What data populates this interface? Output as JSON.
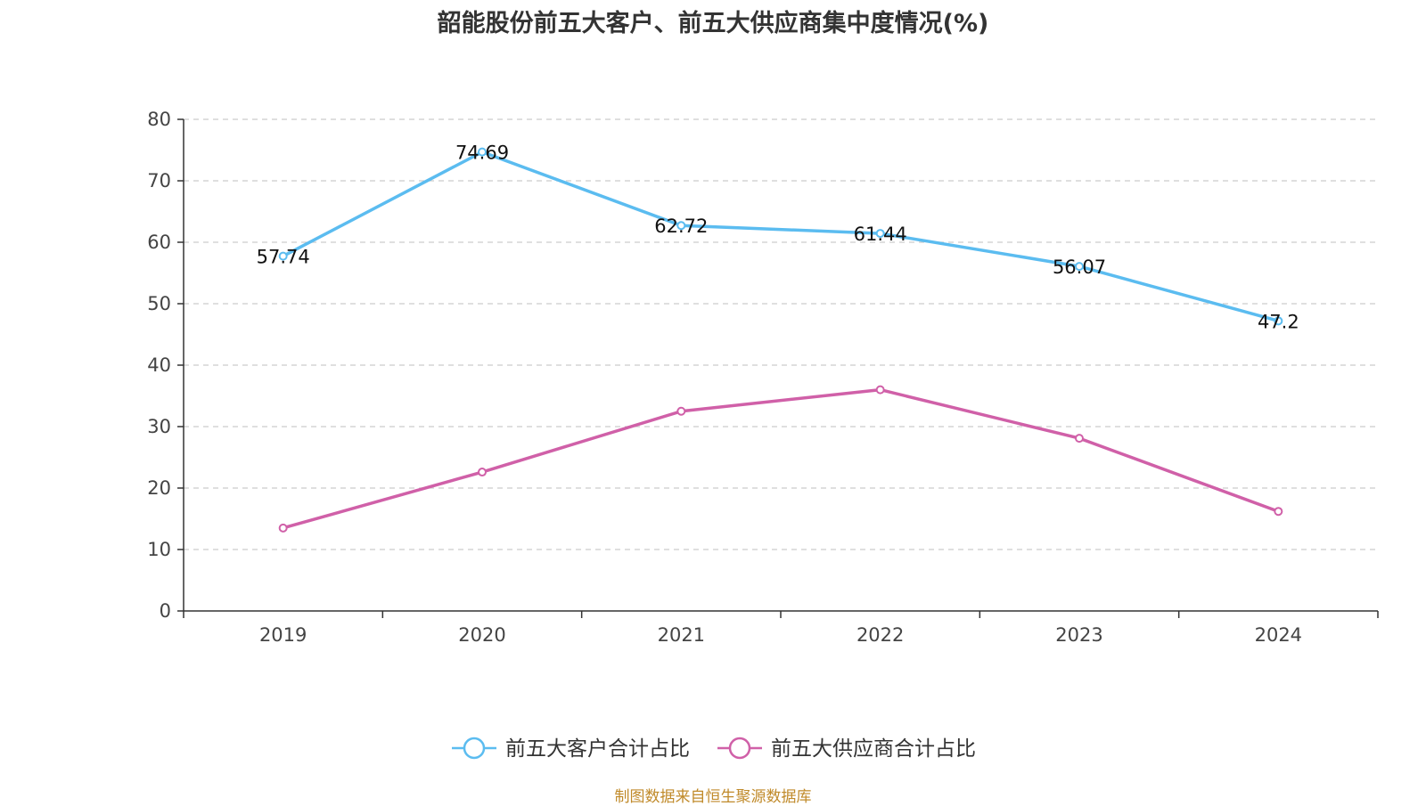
{
  "chart_data": {
    "type": "line",
    "title": "韶能股份前五大客户、前五大供应商集中度情况(%)",
    "categories": [
      "2019",
      "2020",
      "2021",
      "2022",
      "2023",
      "2024"
    ],
    "ylim": [
      0,
      80
    ],
    "yticks": [
      0,
      10,
      20,
      30,
      40,
      50,
      60,
      70,
      80
    ],
    "grid": true,
    "legend_position": "bottom-center",
    "series": [
      {
        "name": "前五大客户合计占比",
        "color": "#5bbcf0",
        "values": [
          57.74,
          74.69,
          62.72,
          61.44,
          56.07,
          47.2
        ],
        "labels": [
          "57.74",
          "74.69",
          "62.72",
          "61.44",
          "56.07",
          "47.2"
        ]
      },
      {
        "name": "前五大供应商合计占比",
        "color": "#d060a8",
        "values": [
          13.5,
          22.6,
          32.5,
          36.0,
          28.1,
          16.2
        ],
        "labels": []
      }
    ]
  },
  "source": "制图数据来自恒生聚源数据库"
}
